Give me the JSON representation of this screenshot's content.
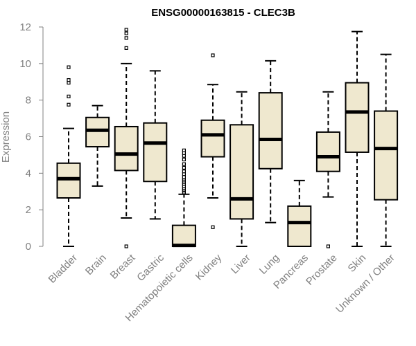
{
  "chart_data": {
    "type": "boxplot",
    "title": "ENSG00000163815 - CLEC3B",
    "xlabel": "",
    "ylabel": "Expression",
    "ylim": [
      0,
      12
    ],
    "yticks": [
      0,
      2,
      4,
      6,
      8,
      10,
      12
    ],
    "grid": false,
    "box_color": "#efe8cf",
    "categories": [
      "Bladder",
      "Brain",
      "Breast",
      "Gastric",
      "Hematopoietic cells",
      "Kidney",
      "Liver",
      "Lung",
      "Pancreas",
      "Prostate",
      "Skin",
      "Unknown / Other"
    ],
    "boxes": [
      {
        "whisker_low": 0.0,
        "q1": 2.65,
        "median": 3.7,
        "q3": 4.55,
        "whisker_high": 6.45,
        "outliers": [
          7.75,
          8.2,
          8.95,
          9.1,
          9.8
        ]
      },
      {
        "whisker_low": 3.3,
        "q1": 5.45,
        "median": 6.35,
        "q3": 7.05,
        "whisker_high": 7.7,
        "outliers": []
      },
      {
        "whisker_low": 1.55,
        "q1": 4.15,
        "median": 5.05,
        "q3": 6.55,
        "whisker_high": 10.0,
        "outliers": [
          0.0,
          10.85,
          11.4,
          11.65,
          11.85
        ]
      },
      {
        "whisker_low": 1.5,
        "q1": 3.55,
        "median": 5.65,
        "q3": 6.75,
        "whisker_high": 9.6,
        "outliers": []
      },
      {
        "whisker_low": 0.0,
        "q1": 0.0,
        "median": 0.05,
        "q3": 1.15,
        "whisker_high": 2.85,
        "outliers": [
          2.95,
          3.05,
          3.1,
          3.2,
          3.3,
          3.4,
          3.5,
          3.6,
          3.7,
          3.8,
          3.95,
          4.1,
          4.3,
          4.5,
          4.75,
          4.95,
          5.1,
          5.25
        ]
      },
      {
        "whisker_low": 2.65,
        "q1": 4.9,
        "median": 6.1,
        "q3": 6.9,
        "whisker_high": 8.85,
        "outliers": [
          1.05,
          10.45
        ]
      },
      {
        "whisker_low": 0.0,
        "q1": 1.5,
        "median": 2.6,
        "q3": 6.65,
        "whisker_high": 8.45,
        "outliers": []
      },
      {
        "whisker_low": 1.3,
        "q1": 4.25,
        "median": 5.85,
        "q3": 8.4,
        "whisker_high": 10.15,
        "outliers": []
      },
      {
        "whisker_low": 0.0,
        "q1": 0.0,
        "median": 1.3,
        "q3": 2.2,
        "whisker_high": 3.6,
        "outliers": []
      },
      {
        "whisker_low": 2.7,
        "q1": 4.1,
        "median": 4.9,
        "q3": 6.25,
        "whisker_high": 8.45,
        "outliers": [
          0.0
        ]
      },
      {
        "whisker_low": 0.0,
        "q1": 5.15,
        "median": 7.35,
        "q3": 8.95,
        "whisker_high": 11.75,
        "outliers": []
      },
      {
        "whisker_low": 0.0,
        "q1": 2.55,
        "median": 5.35,
        "q3": 7.4,
        "whisker_high": 10.5,
        "outliers": []
      }
    ]
  }
}
